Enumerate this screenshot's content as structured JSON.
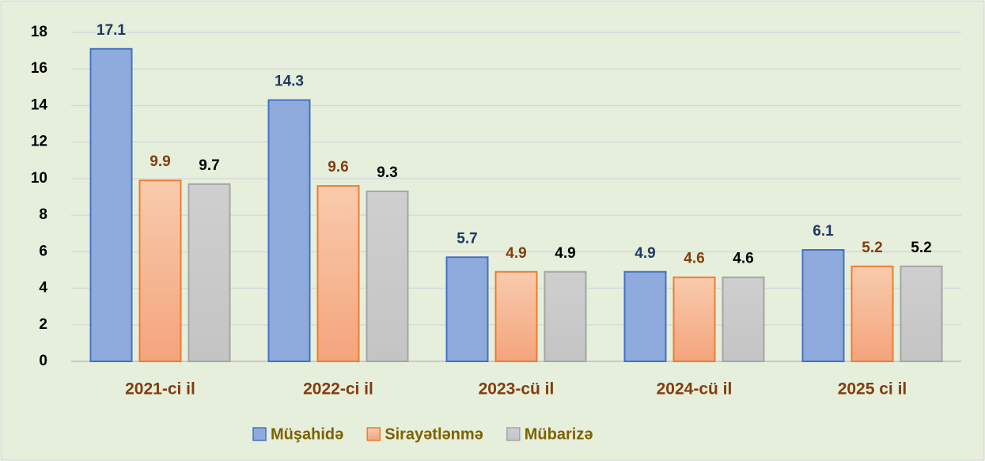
{
  "chart_data": {
    "type": "bar",
    "categories": [
      "2021-ci il",
      "2022-ci il",
      "2023-cü il",
      "2024-cü il",
      "2025 ci il"
    ],
    "series": [
      {
        "name": "Müşahidə",
        "color": "#8faadc",
        "values": [
          17.1,
          14.3,
          5.7,
          4.9,
          6.1
        ]
      },
      {
        "name": "Sirayətlənmə",
        "color": "#f4b183",
        "values": [
          9.9,
          9.6,
          4.9,
          4.6,
          5.2
        ]
      },
      {
        "name": "Mübarizə",
        "color": "#c9c9c9",
        "values": [
          9.7,
          9.3,
          4.9,
          4.6,
          5.2
        ]
      }
    ],
    "ylim": [
      0,
      18
    ],
    "yticks": [
      0,
      2,
      4,
      6,
      8,
      10,
      12,
      14,
      16,
      18
    ],
    "grid": true,
    "legend": "bottom"
  }
}
